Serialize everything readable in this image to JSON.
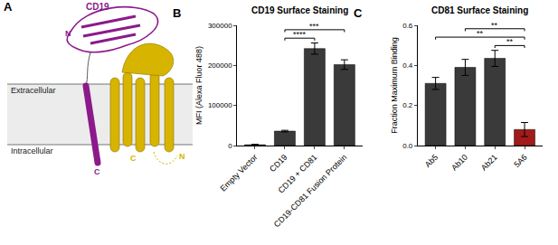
{
  "diagram": {
    "panel": "A",
    "regions": [
      "Extracellular",
      "Intracellular"
    ],
    "proteins": [
      {
        "name": "CD19",
        "color": "#8b1a8b",
        "n_label": "N",
        "c_label": "C"
      },
      {
        "name": "CD81",
        "color": "#d6b400",
        "n_label": "N",
        "c_label": "C"
      }
    ]
  },
  "chart_data": [
    {
      "type": "bar",
      "panel": "B",
      "title": "CD19 Surface Staining",
      "y_label": "MFI (Alexa Fluor 488)",
      "categories": [
        "Empty Vector",
        "CD19",
        "CD19 + CD81",
        "CD19-CD81 Fusion Protein"
      ],
      "values": [
        2000,
        36000,
        242000,
        202000
      ],
      "errors": [
        1000,
        2000,
        14000,
        12000
      ],
      "colors": [
        "#3a3a3a",
        "#3a3a3a",
        "#3a3a3a",
        "#3a3a3a"
      ],
      "ylim": [
        0,
        300000
      ],
      "yticks": [
        0,
        100000,
        200000,
        300000
      ],
      "significance": [
        {
          "from": "CD19",
          "to": "CD19 + CD81",
          "label": "****"
        },
        {
          "from": "CD19",
          "to": "CD19-CD81 Fusion Protein",
          "label": "***"
        }
      ]
    },
    {
      "type": "bar",
      "panel": "C",
      "title": "CD81 Surface Staining",
      "y_label": "Fraction Maximum Binding",
      "categories": [
        "Ab5",
        "Ab10",
        "Ab21",
        "5A6"
      ],
      "values": [
        0.31,
        0.39,
        0.435,
        0.08
      ],
      "errors": [
        0.03,
        0.04,
        0.04,
        0.035
      ],
      "colors": [
        "#3a3a3a",
        "#3a3a3a",
        "#3a3a3a",
        "#a31a1a"
      ],
      "ylim": [
        0,
        0.6
      ],
      "yticks": [
        {
          "value": 0,
          "label": "0.0"
        },
        0.2,
        0.4,
        0.6
      ],
      "significance": [
        {
          "from": "Ab21",
          "to": "5A6",
          "label": "**"
        },
        {
          "from": "Ab5",
          "to": "5A6",
          "label": "**"
        },
        {
          "from": "Ab10",
          "to": "5A6",
          "label": "**"
        }
      ]
    }
  ]
}
